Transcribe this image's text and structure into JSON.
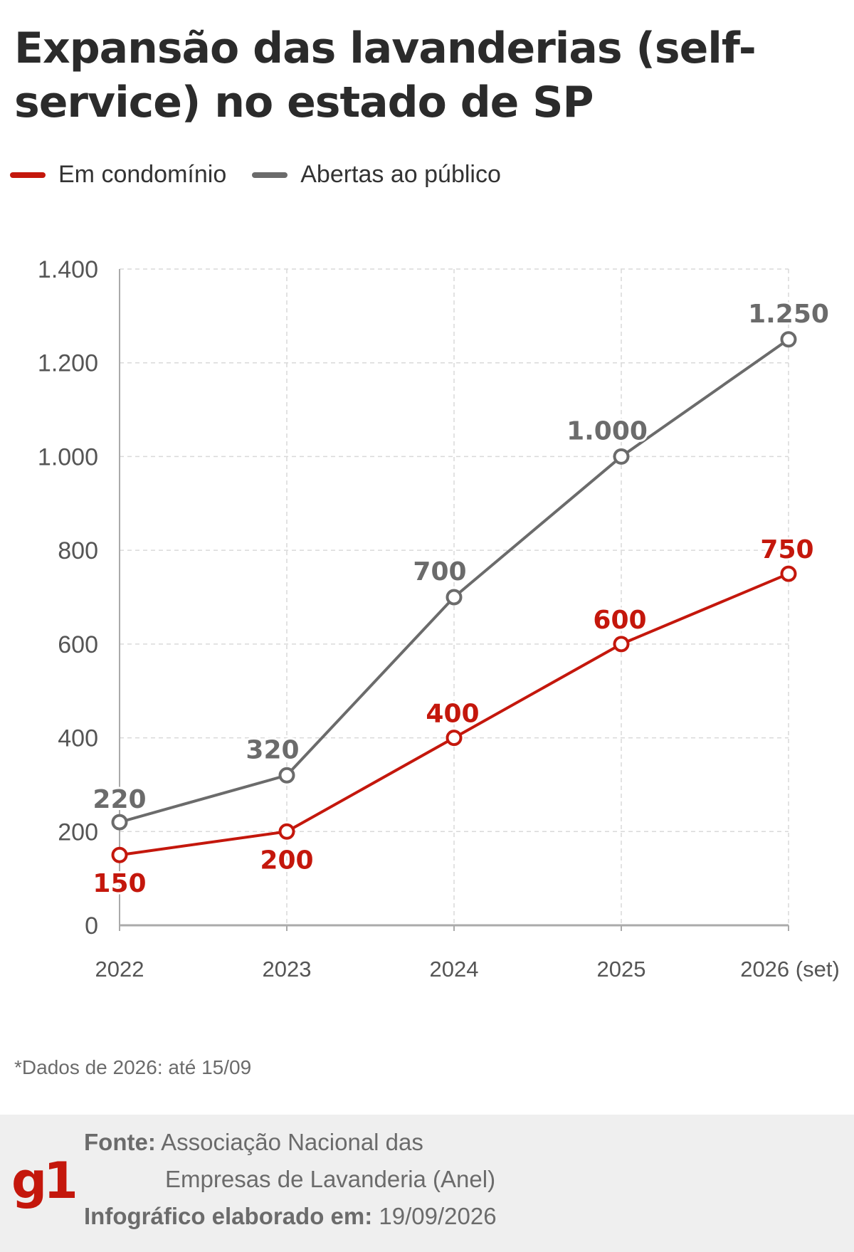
{
  "title": "Expansão das lavanderias (self-service) no estado de SP",
  "legend": [
    {
      "label": "Em condomínio",
      "color": "#c4170c"
    },
    {
      "label": "Abertas ao público",
      "color": "#6b6b6b"
    }
  ],
  "chart_data": {
    "type": "line",
    "categories": [
      "2022",
      "2023",
      "2024",
      "2025",
      "2026 (set)"
    ],
    "series": [
      {
        "name": "Em condomínio",
        "color": "#c4170c",
        "values": [
          150,
          200,
          400,
          600,
          750
        ],
        "labels": [
          "150",
          "200",
          "400",
          "600",
          "750"
        ]
      },
      {
        "name": "Abertas ao público",
        "color": "#6b6b6b",
        "values": [
          220,
          320,
          700,
          1000,
          1250
        ],
        "labels": [
          "220",
          "320",
          "700",
          "1.000",
          "1.250"
        ]
      }
    ],
    "ylim": [
      0,
      1400
    ],
    "yticks": [
      0,
      200,
      400,
      600,
      800,
      1000,
      1200,
      1400
    ],
    "ytick_labels": [
      "0",
      "200",
      "400",
      "600",
      "800",
      "1.000",
      "1.200",
      "1.400"
    ],
    "grid": true,
    "legend_position": "top-left"
  },
  "note": "*Dados de 2026: até 15/09",
  "footer": {
    "source_label": "Fonte:",
    "source_line1": "Associação Nacional das",
    "source_line2": "Empresas de Lavanderia (Anel)",
    "date_label": "Infográfico elaborado em:",
    "date_value": "19/09/2026",
    "logo": "g1"
  }
}
